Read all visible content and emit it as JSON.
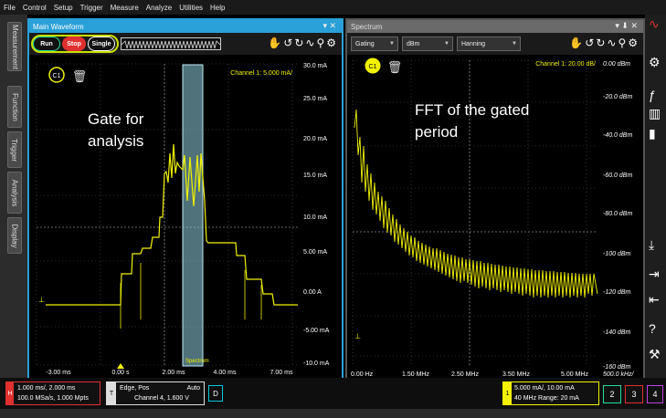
{
  "menu": [
    "File",
    "Control",
    "Setup",
    "Trigger",
    "Measure",
    "Analyze",
    "Utilities",
    "Help"
  ],
  "left_tabs": [
    "Measurement",
    "Function",
    "Trigger",
    "Analysis",
    "Display"
  ],
  "main_window": {
    "title": "Main Waveform",
    "controls": "▾ ✕",
    "run_label": "Run",
    "stop_label": "Stop",
    "single_label": "Single",
    "channel_label": "C1",
    "channel_scale": "Channel 1: 5.000 mA/",
    "annotation": "Gate for analysis",
    "gate_label": "Spectrum",
    "y_ticks": [
      "30.0 mA",
      "25.0 mA",
      "20.0 mA",
      "15.0 mA",
      "10.0 mA",
      "5.00 mA",
      "0.00 A",
      "-5.00 mA",
      "-10.0 mA"
    ],
    "x_ticks": [
      "-3.00 ms",
      "0.00 s",
      "2.00 ms",
      "4.00 ms",
      "7.00 ms"
    ]
  },
  "spectrum_window": {
    "title": "Spectrum",
    "controls": "▾ ⬇ ✕",
    "gating_label": "Gating",
    "unit_label": "dBm",
    "window_label": "Hanning",
    "channel_label": "C1",
    "channel_scale": "Channel 1:  20.00 dB/",
    "annotation": "FFT of the gated period",
    "y_ticks": [
      "0.00 dBm",
      "-20.0 dBm",
      "-40.0 dBm",
      "-60.0 dBm",
      "-80.0 dBm",
      "-100 dBm",
      "-120 dBm",
      "-140 dBm",
      "-160 dBm"
    ],
    "x_ticks": [
      "0.00 Hz",
      "1.50 MHz",
      "2.50 MHz",
      "3.50 MHz",
      "5.00 MHz",
      "500.0 kHz/"
    ]
  },
  "status": {
    "h_marker": "H",
    "h_line1": "1.000 ms/, 2.000 ms",
    "h_line2": "100.0 MSa/s, 1.000 Mpts",
    "t_marker": "T",
    "t_line1": "Edge, Pos",
    "t_auto": "Auto",
    "t_line2": "Channel 4, 1.600 V",
    "d_marker": "D",
    "ch1_marker": "1",
    "ch1_line1": "5.000 mA/, 10.00 mA",
    "ch1_line2": "40 MHz    Range: 20 mA",
    "ch2": "2",
    "ch3": "3",
    "ch4": "4"
  },
  "colors": {
    "trace": "#f2f200",
    "main_accent": "#2aa0d8",
    "gate": "#8fd0e0",
    "stop": "#e03030"
  }
}
